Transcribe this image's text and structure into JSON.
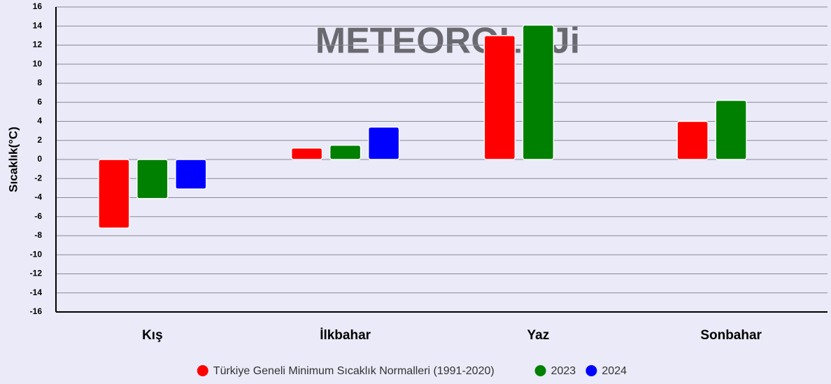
{
  "chart_data": {
    "type": "bar",
    "watermark": "METEOROLOJi",
    "y_label": "Sıcaklık(°C)",
    "categories": [
      "Kış",
      "İlkbahar",
      "Yaz",
      "Sonbahar"
    ],
    "series": [
      {
        "name": "Türkiye Geneli Minimum Sıcaklık Normalleri (1991-2020)",
        "color": "#ff0000",
        "values": [
          -7.2,
          1.2,
          13.0,
          4.0
        ]
      },
      {
        "name": "2023",
        "color": "#008000",
        "values": [
          -4.1,
          1.5,
          14.1,
          6.2
        ]
      },
      {
        "name": "2024",
        "color": "#0000ff",
        "values": [
          -3.1,
          3.4,
          null,
          null
        ]
      }
    ],
    "ylim": [
      -16,
      16
    ],
    "yticks": [
      -16,
      -14,
      -12,
      -10,
      -8,
      -6,
      -4,
      -2,
      0,
      2,
      4,
      6,
      8,
      10,
      12,
      14,
      16
    ],
    "grid": true,
    "legend": "bottom"
  }
}
